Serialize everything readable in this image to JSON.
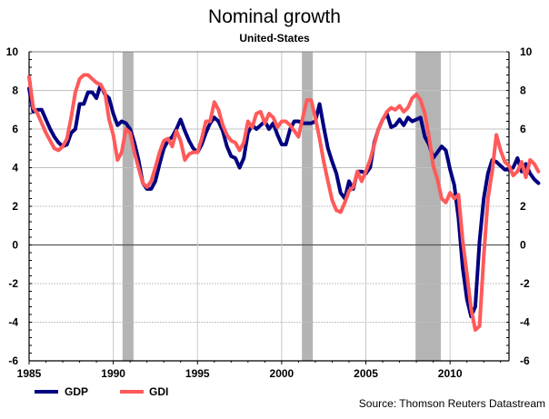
{
  "chart_data": {
    "type": "line",
    "title": "Nominal growth",
    "subtitle": "United-States",
    "source": "Source: Thomson Reuters Datastream",
    "xlabel": "",
    "ylabel": "",
    "xlim": [
      1985,
      2013.5
    ],
    "ylim": [
      -6,
      10
    ],
    "x_ticks": [
      1985,
      1990,
      1995,
      2000,
      2005,
      2010
    ],
    "x_tick_labels": [
      "1985",
      "1990",
      "1995",
      "2000",
      "2005",
      "2010"
    ],
    "y_ticks": [
      -6,
      -4,
      -2,
      0,
      2,
      4,
      6,
      8,
      10
    ],
    "y_tick_labels": [
      "-6",
      "-4",
      "-2",
      "0",
      "2",
      "4",
      "6",
      "8",
      "10"
    ],
    "grid": true,
    "legend_position": "bottom-left",
    "recessions": [
      [
        1990.55,
        1991.2
      ],
      [
        2001.2,
        2001.85
      ],
      [
        2007.95,
        2009.45
      ]
    ],
    "x_start": 1985.0,
    "x_step": 0.25,
    "series": [
      {
        "name": "GDP",
        "color": "#000080",
        "values": [
          8.1,
          6.9,
          7.0,
          7.0,
          6.5,
          6.0,
          5.6,
          5.3,
          5.1,
          5.2,
          5.8,
          6.0,
          7.3,
          7.3,
          7.9,
          7.9,
          7.6,
          8.3,
          7.8,
          7.6,
          6.8,
          6.2,
          6.4,
          6.3,
          6.0,
          5.3,
          4.4,
          3.2,
          2.9,
          2.9,
          3.3,
          4.2,
          5.0,
          5.4,
          5.6,
          6.0,
          6.5,
          5.9,
          5.4,
          5.0,
          4.8,
          5.2,
          5.8,
          6.3,
          6.6,
          6.4,
          5.9,
          5.1,
          4.6,
          4.5,
          4.0,
          4.5,
          5.8,
          6.2,
          6.0,
          6.2,
          6.4,
          6.0,
          6.3,
          5.7,
          5.2,
          5.2,
          6.0,
          6.4,
          6.4,
          6.3,
          6.3,
          6.3,
          6.4,
          7.3,
          6.1,
          5.0,
          4.3,
          3.7,
          2.7,
          2.4,
          3.3,
          2.9,
          3.8,
          3.8,
          3.7,
          4.0,
          5.3,
          6.0,
          6.5,
          6.8,
          6.1,
          6.2,
          6.5,
          6.2,
          6.6,
          6.4,
          6.5,
          6.6,
          5.6,
          5.2,
          4.5,
          4.8,
          5.1,
          4.9,
          3.9,
          3.1,
          1.4,
          -1.2,
          -2.8,
          -3.7,
          -3.2,
          0.2,
          2.4,
          3.7,
          4.4,
          4.3,
          4.1,
          3.9,
          3.9,
          4.0,
          4.5,
          3.8,
          4.2,
          3.7,
          3.4,
          3.2
        ]
      },
      {
        "name": "GDI",
        "color": "#ff5a5a",
        "values": [
          8.7,
          7.1,
          6.8,
          6.3,
          5.8,
          5.4,
          5.0,
          4.9,
          5.1,
          5.5,
          6.6,
          7.9,
          8.6,
          8.8,
          8.8,
          8.6,
          8.4,
          8.3,
          7.9,
          6.5,
          5.7,
          4.4,
          4.8,
          6.0,
          5.8,
          4.8,
          4.0,
          3.2,
          3.0,
          3.3,
          4.0,
          4.8,
          5.4,
          5.5,
          5.1,
          5.9,
          5.4,
          4.4,
          4.7,
          4.8,
          4.8,
          5.5,
          6.4,
          6.4,
          7.4,
          7.0,
          6.2,
          5.7,
          5.4,
          5.3,
          4.9,
          5.3,
          6.4,
          6.1,
          6.8,
          6.9,
          6.3,
          6.8,
          6.6,
          6.1,
          6.4,
          6.4,
          6.2,
          5.9,
          5.6,
          6.6,
          7.5,
          7.5,
          6.6,
          5.5,
          4.3,
          3.3,
          2.3,
          1.8,
          1.7,
          2.2,
          2.8,
          3.0,
          3.8,
          3.3,
          3.8,
          4.4,
          5.2,
          6.0,
          6.5,
          6.9,
          7.1,
          7.0,
          7.2,
          6.9,
          7.1,
          7.6,
          7.8,
          7.5,
          6.8,
          5.6,
          4.1,
          3.4,
          2.4,
          2.2,
          2.7,
          2.4,
          2.6,
          0.2,
          -1.5,
          -3.3,
          -4.4,
          -4.2,
          -0.6,
          2.4,
          3.8,
          5.7,
          4.9,
          4.3,
          4.1,
          3.6,
          3.8,
          4.3,
          3.5,
          4.4,
          4.2,
          3.8
        ]
      }
    ]
  }
}
